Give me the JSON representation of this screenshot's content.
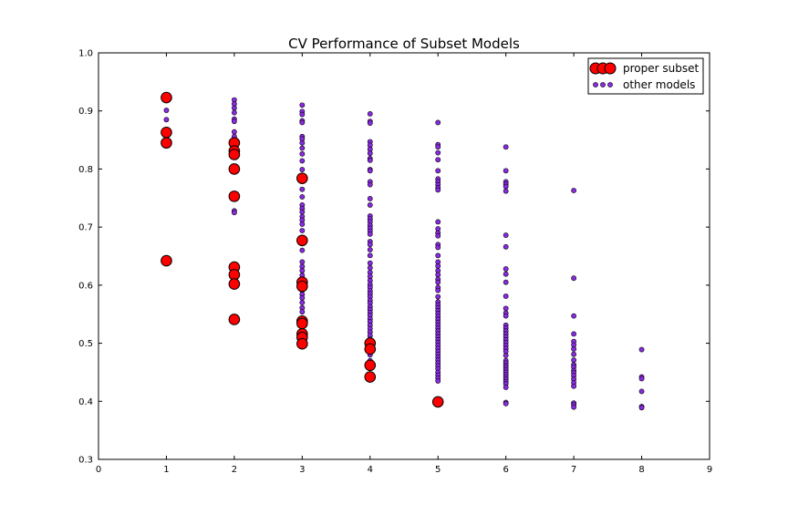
{
  "chart_data": {
    "type": "scatter",
    "title": "CV Performance of Subset Models",
    "xlabel": "",
    "ylabel": "",
    "xlim": [
      0,
      9
    ],
    "ylim": [
      0.3,
      1.0
    ],
    "xticks": [
      "0",
      "1",
      "2",
      "3",
      "4",
      "5",
      "6",
      "7",
      "8",
      "9"
    ],
    "yticks": [
      "0.3",
      "0.4",
      "0.5",
      "0.6",
      "0.7",
      "0.8",
      "0.9",
      "1.0"
    ],
    "grid": false,
    "legend_position": "top-right",
    "colors": {
      "proper_subset": "#ff0000",
      "other_models": "#8a2be2",
      "marker_edge": "#000000"
    },
    "series": [
      {
        "name": "other models",
        "points": [
          [
            1,
            0.923
          ],
          [
            1,
            0.901
          ],
          [
            1,
            0.885
          ],
          [
            1,
            0.863
          ],
          [
            1,
            0.845
          ],
          [
            2,
            0.919
          ],
          [
            2,
            0.912
          ],
          [
            2,
            0.905
          ],
          [
            2,
            0.897
          ],
          [
            2,
            0.886
          ],
          [
            2,
            0.882
          ],
          [
            2,
            0.864
          ],
          [
            2,
            0.856
          ],
          [
            2,
            0.845
          ],
          [
            2,
            0.831
          ],
          [
            2,
            0.825
          ],
          [
            2,
            0.805
          ],
          [
            2,
            0.728
          ],
          [
            2,
            0.725
          ],
          [
            2,
            0.636
          ],
          [
            2,
            0.631
          ],
          [
            2,
            0.627
          ],
          [
            2,
            0.623
          ],
          [
            2,
            0.618
          ],
          [
            2,
            0.612
          ],
          [
            2,
            0.608
          ],
          [
            2,
            0.603
          ],
          [
            3,
            0.91
          ],
          [
            3,
            0.899
          ],
          [
            3,
            0.894
          ],
          [
            3,
            0.883
          ],
          [
            3,
            0.88
          ],
          [
            3,
            0.856
          ],
          [
            3,
            0.852
          ],
          [
            3,
            0.845
          ],
          [
            3,
            0.836
          ],
          [
            3,
            0.826
          ],
          [
            3,
            0.814
          ],
          [
            3,
            0.799
          ],
          [
            3,
            0.789
          ],
          [
            3,
            0.779
          ],
          [
            3,
            0.765
          ],
          [
            3,
            0.752
          ],
          [
            3,
            0.738
          ],
          [
            3,
            0.732
          ],
          [
            3,
            0.726
          ],
          [
            3,
            0.718
          ],
          [
            3,
            0.712
          ],
          [
            3,
            0.705
          ],
          [
            3,
            0.694
          ],
          [
            3,
            0.672
          ],
          [
            3,
            0.66
          ],
          [
            3,
            0.64
          ],
          [
            3,
            0.632
          ],
          [
            3,
            0.625
          ],
          [
            3,
            0.617
          ],
          [
            3,
            0.61
          ],
          [
            3,
            0.599
          ],
          [
            3,
            0.591
          ],
          [
            3,
            0.584
          ],
          [
            3,
            0.578
          ],
          [
            3,
            0.57
          ],
          [
            3,
            0.561
          ],
          [
            3,
            0.554
          ],
          [
            3,
            0.54
          ],
          [
            3,
            0.53
          ],
          [
            3,
            0.52
          ],
          [
            3,
            0.51
          ],
          [
            4,
            0.895
          ],
          [
            4,
            0.882
          ],
          [
            4,
            0.879
          ],
          [
            4,
            0.847
          ],
          [
            4,
            0.841
          ],
          [
            4,
            0.834
          ],
          [
            4,
            0.827
          ],
          [
            4,
            0.818
          ],
          [
            4,
            0.815
          ],
          [
            4,
            0.799
          ],
          [
            4,
            0.797
          ],
          [
            4,
            0.778
          ],
          [
            4,
            0.773
          ],
          [
            4,
            0.749
          ],
          [
            4,
            0.738
          ],
          [
            4,
            0.719
          ],
          [
            4,
            0.714
          ],
          [
            4,
            0.709
          ],
          [
            4,
            0.703
          ],
          [
            4,
            0.698
          ],
          [
            4,
            0.693
          ],
          [
            4,
            0.688
          ],
          [
            4,
            0.675
          ],
          [
            4,
            0.67
          ],
          [
            4,
            0.661
          ],
          [
            4,
            0.651
          ],
          [
            4,
            0.638
          ],
          [
            4,
            0.63
          ],
          [
            4,
            0.622
          ],
          [
            4,
            0.615
          ],
          [
            4,
            0.608
          ],
          [
            4,
            0.601
          ],
          [
            4,
            0.596
          ],
          [
            4,
            0.59
          ],
          [
            4,
            0.585
          ],
          [
            4,
            0.58
          ],
          [
            4,
            0.574
          ],
          [
            4,
            0.569
          ],
          [
            4,
            0.563
          ],
          [
            4,
            0.558
          ],
          [
            4,
            0.553
          ],
          [
            4,
            0.548
          ],
          [
            4,
            0.542
          ],
          [
            4,
            0.537
          ],
          [
            4,
            0.531
          ],
          [
            4,
            0.525
          ],
          [
            4,
            0.519
          ],
          [
            4,
            0.513
          ],
          [
            4,
            0.507
          ],
          [
            4,
            0.48
          ],
          [
            4,
            0.47
          ],
          [
            5,
            0.88
          ],
          [
            5,
            0.842
          ],
          [
            5,
            0.838
          ],
          [
            5,
            0.828
          ],
          [
            5,
            0.816
          ],
          [
            5,
            0.797
          ],
          [
            5,
            0.783
          ],
          [
            5,
            0.778
          ],
          [
            5,
            0.773
          ],
          [
            5,
            0.768
          ],
          [
            5,
            0.764
          ],
          [
            5,
            0.709
          ],
          [
            5,
            0.697
          ],
          [
            5,
            0.69
          ],
          [
            5,
            0.685
          ],
          [
            5,
            0.67
          ],
          [
            5,
            0.665
          ],
          [
            5,
            0.651
          ],
          [
            5,
            0.64
          ],
          [
            5,
            0.633
          ],
          [
            5,
            0.625
          ],
          [
            5,
            0.618
          ],
          [
            5,
            0.61
          ],
          [
            5,
            0.605
          ],
          [
            5,
            0.596
          ],
          [
            5,
            0.591
          ],
          [
            5,
            0.58
          ],
          [
            5,
            0.571
          ],
          [
            5,
            0.566
          ],
          [
            5,
            0.561
          ],
          [
            5,
            0.556
          ],
          [
            5,
            0.551
          ],
          [
            5,
            0.546
          ],
          [
            5,
            0.541
          ],
          [
            5,
            0.536
          ],
          [
            5,
            0.531
          ],
          [
            5,
            0.526
          ],
          [
            5,
            0.521
          ],
          [
            5,
            0.516
          ],
          [
            5,
            0.511
          ],
          [
            5,
            0.506
          ],
          [
            5,
            0.501
          ],
          [
            5,
            0.496
          ],
          [
            5,
            0.491
          ],
          [
            5,
            0.486
          ],
          [
            5,
            0.481
          ],
          [
            5,
            0.476
          ],
          [
            5,
            0.471
          ],
          [
            5,
            0.466
          ],
          [
            5,
            0.461
          ],
          [
            5,
            0.456
          ],
          [
            5,
            0.45
          ],
          [
            5,
            0.445
          ],
          [
            5,
            0.44
          ],
          [
            5,
            0.435
          ],
          [
            6,
            0.838
          ],
          [
            6,
            0.797
          ],
          [
            6,
            0.778
          ],
          [
            6,
            0.774
          ],
          [
            6,
            0.77
          ],
          [
            6,
            0.762
          ],
          [
            6,
            0.686
          ],
          [
            6,
            0.666
          ],
          [
            6,
            0.628
          ],
          [
            6,
            0.619
          ],
          [
            6,
            0.605
          ],
          [
            6,
            0.581
          ],
          [
            6,
            0.56
          ],
          [
            6,
            0.552
          ],
          [
            6,
            0.547
          ],
          [
            6,
            0.531
          ],
          [
            6,
            0.526
          ],
          [
            6,
            0.521
          ],
          [
            6,
            0.516
          ],
          [
            6,
            0.511
          ],
          [
            6,
            0.506
          ],
          [
            6,
            0.501
          ],
          [
            6,
            0.496
          ],
          [
            6,
            0.491
          ],
          [
            6,
            0.486
          ],
          [
            6,
            0.479
          ],
          [
            6,
            0.47
          ],
          [
            6,
            0.466
          ],
          [
            6,
            0.462
          ],
          [
            6,
            0.458
          ],
          [
            6,
            0.454
          ],
          [
            6,
            0.45
          ],
          [
            6,
            0.446
          ],
          [
            6,
            0.442
          ],
          [
            6,
            0.438
          ],
          [
            6,
            0.434
          ],
          [
            6,
            0.43
          ],
          [
            6,
            0.424
          ],
          [
            6,
            0.398
          ],
          [
            6,
            0.396
          ],
          [
            7,
            0.763
          ],
          [
            7,
            0.612
          ],
          [
            7,
            0.547
          ],
          [
            7,
            0.516
          ],
          [
            7,
            0.503
          ],
          [
            7,
            0.497
          ],
          [
            7,
            0.49
          ],
          [
            7,
            0.481
          ],
          [
            7,
            0.471
          ],
          [
            7,
            0.463
          ],
          [
            7,
            0.459
          ],
          [
            7,
            0.453
          ],
          [
            7,
            0.449
          ],
          [
            7,
            0.444
          ],
          [
            7,
            0.438
          ],
          [
            7,
            0.432
          ],
          [
            7,
            0.426
          ],
          [
            7,
            0.397
          ],
          [
            7,
            0.394
          ],
          [
            7,
            0.39
          ],
          [
            8,
            0.489
          ],
          [
            8,
            0.442
          ],
          [
            8,
            0.439
          ],
          [
            8,
            0.417
          ],
          [
            8,
            0.391
          ],
          [
            8,
            0.389
          ]
        ]
      },
      {
        "name": "proper subset",
        "points": [
          [
            1,
            0.923
          ],
          [
            1,
            0.863
          ],
          [
            1,
            0.845
          ],
          [
            1,
            0.642
          ],
          [
            2,
            0.845
          ],
          [
            2,
            0.831
          ],
          [
            2,
            0.825
          ],
          [
            2,
            0.8
          ],
          [
            2,
            0.753
          ],
          [
            2,
            0.631
          ],
          [
            2,
            0.618
          ],
          [
            2,
            0.602
          ],
          [
            2,
            0.541
          ],
          [
            3,
            0.784
          ],
          [
            3,
            0.677
          ],
          [
            3,
            0.605
          ],
          [
            3,
            0.598
          ],
          [
            3,
            0.538
          ],
          [
            3,
            0.534
          ],
          [
            3,
            0.516
          ],
          [
            3,
            0.51
          ],
          [
            3,
            0.499
          ],
          [
            4,
            0.5
          ],
          [
            4,
            0.49
          ],
          [
            4,
            0.462
          ],
          [
            4,
            0.442
          ],
          [
            5,
            0.399
          ]
        ]
      }
    ]
  }
}
